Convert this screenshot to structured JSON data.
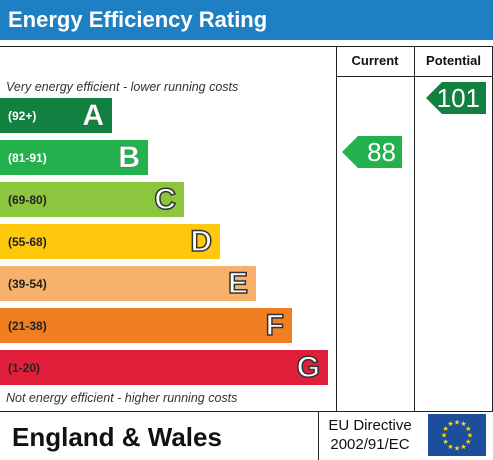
{
  "title": "Energy Efficiency Rating",
  "columns": {
    "current": "Current",
    "potential": "Potential"
  },
  "notes": {
    "top": "Very energy efficient - lower running costs",
    "bottom": "Not energy efficient - higher running costs"
  },
  "bands": [
    {
      "range": "(92+)",
      "letter": "A",
      "color": "#118040"
    },
    {
      "range": "(81-91)",
      "letter": "B",
      "color": "#22b14c"
    },
    {
      "range": "(69-80)",
      "letter": "C",
      "color": "#8cc63f"
    },
    {
      "range": "(55-68)",
      "letter": "D",
      "color": "#fec80c"
    },
    {
      "range": "(39-54)",
      "letter": "E",
      "color": "#f8b16a"
    },
    {
      "range": "(21-38)",
      "letter": "F",
      "color": "#f07f22"
    },
    {
      "range": "(1-20)",
      "letter": "G",
      "color": "#e21f3b"
    }
  ],
  "ratings": {
    "current": {
      "value": "88",
      "color": "#22b14c"
    },
    "potential": {
      "value": "101",
      "color": "#118040"
    }
  },
  "footer": {
    "region": "England & Wales",
    "directive_line1": "EU Directive",
    "directive_line2": "2002/91/EC",
    "flag_icon": "eu-flag-icon"
  }
}
